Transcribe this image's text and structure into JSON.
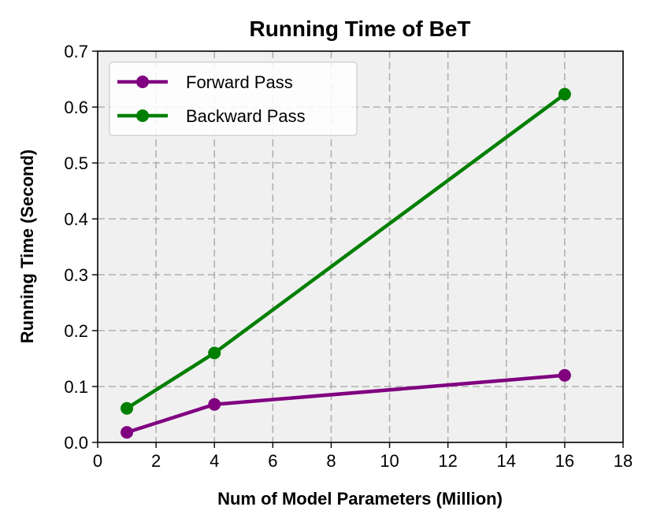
{
  "chart_data": {
    "type": "line",
    "title": "Running Time of BeT",
    "xlabel": "Num of Model Parameters (Million)",
    "ylabel": "Running Time (Second)",
    "xlim": [
      0,
      18
    ],
    "ylim": [
      0,
      0.7
    ],
    "xticks": [
      "0",
      "2",
      "4",
      "6",
      "8",
      "10",
      "12",
      "14",
      "16",
      "18"
    ],
    "yticks": [
      "0.0",
      "0.1",
      "0.2",
      "0.3",
      "0.4",
      "0.5",
      "0.6",
      "0.7"
    ],
    "grid": true,
    "legend_position": "upper-left",
    "plot_background": "#f0f0f0",
    "x": [
      1,
      4,
      16
    ],
    "series": [
      {
        "name": "Forward Pass",
        "color": "#800080",
        "values": [
          0.018,
          0.068,
          0.12
        ]
      },
      {
        "name": "Backward Pass",
        "color": "#007f00",
        "values": [
          0.061,
          0.16,
          0.623
        ]
      }
    ]
  }
}
